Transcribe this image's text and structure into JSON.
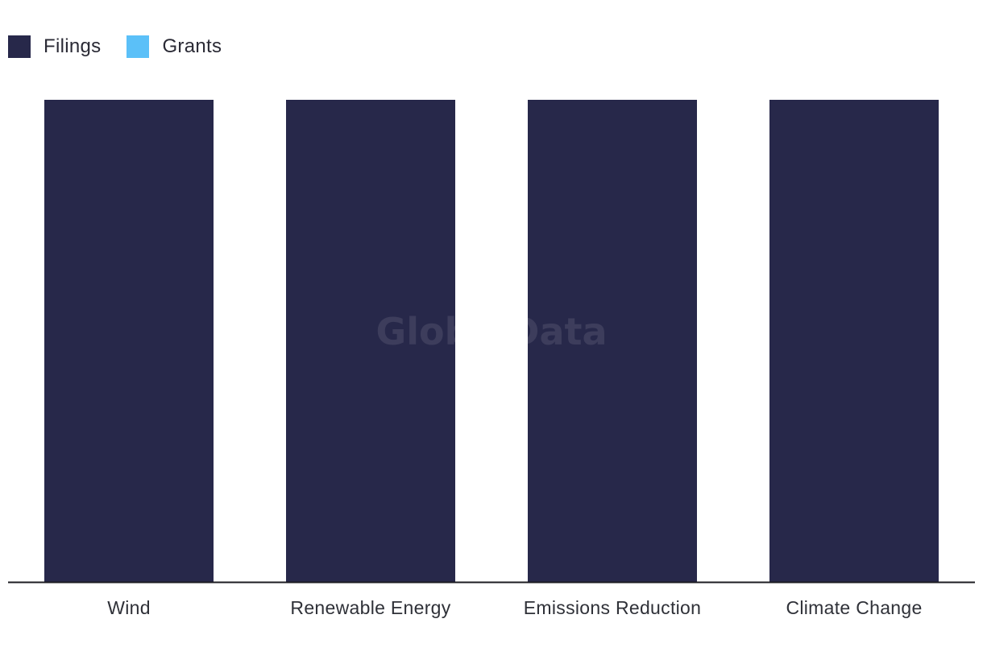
{
  "legend": {
    "items": [
      {
        "label": "Filings",
        "color": "#27284a"
      },
      {
        "label": "Grants",
        "color": "#5bc0f8"
      }
    ]
  },
  "watermark": "GlobalData",
  "chart_data": {
    "type": "bar",
    "categories": [
      "Wind",
      "Renewable Energy",
      "Emissions Reduction",
      "Climate Change"
    ],
    "series": [
      {
        "name": "Filings",
        "color": "#27284a",
        "values": [
          100,
          100,
          100,
          100
        ]
      },
      {
        "name": "Grants",
        "color": "#5bc0f8",
        "values": [
          0,
          0,
          0,
          0
        ]
      }
    ],
    "title": "",
    "xlabel": "",
    "ylabel": "",
    "ylim": [
      0,
      100
    ],
    "grid": false,
    "legend_position": "top-left"
  }
}
